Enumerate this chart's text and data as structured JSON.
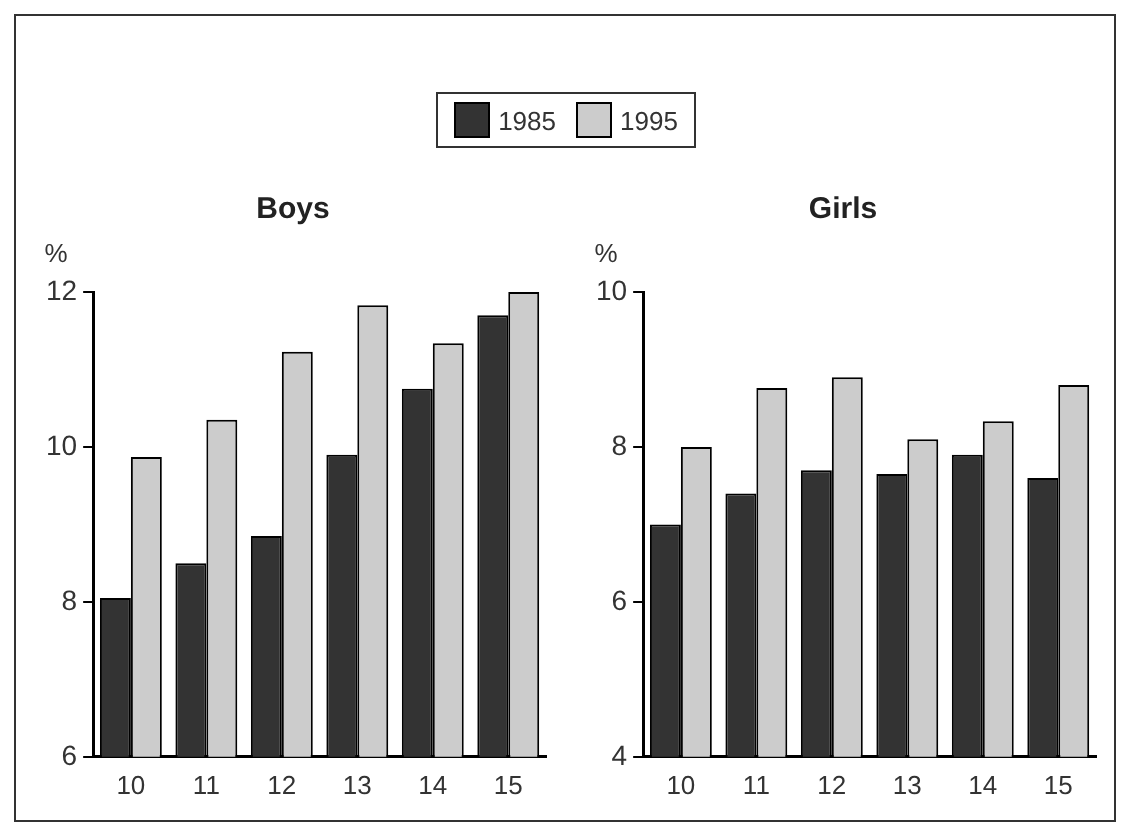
{
  "chart_data": [
    {
      "type": "bar",
      "title": "Boys",
      "ylabel": "%",
      "categories": [
        "10",
        "11",
        "12",
        "13",
        "14",
        "15"
      ],
      "series": [
        {
          "name": "1985",
          "color": "#333333",
          "values": [
            8.05,
            8.5,
            8.85,
            9.9,
            10.75,
            11.7
          ]
        },
        {
          "name": "1995",
          "color": "#cccccc",
          "values": [
            9.87,
            10.35,
            11.23,
            11.83,
            11.34,
            12.0
          ]
        }
      ],
      "ylim": [
        6,
        12
      ],
      "yticks": [
        6,
        8,
        10,
        12
      ],
      "grid": false,
      "legend": "top"
    },
    {
      "type": "bar",
      "title": "Girls",
      "ylabel": "%",
      "categories": [
        "10",
        "11",
        "12",
        "13",
        "14",
        "15"
      ],
      "series": [
        {
          "color": "#333333",
          "values": [
            7.0,
            7.4,
            7.7,
            7.65,
            7.9,
            7.6
          ]
        },
        {
          "color": "#cccccc",
          "values": [
            8.0,
            8.76,
            8.9,
            8.1,
            8.33,
            8.8
          ]
        }
      ],
      "ylim": [
        4,
        10
      ],
      "yticks": [
        4,
        6,
        8,
        10
      ],
      "grid": false
    }
  ]
}
